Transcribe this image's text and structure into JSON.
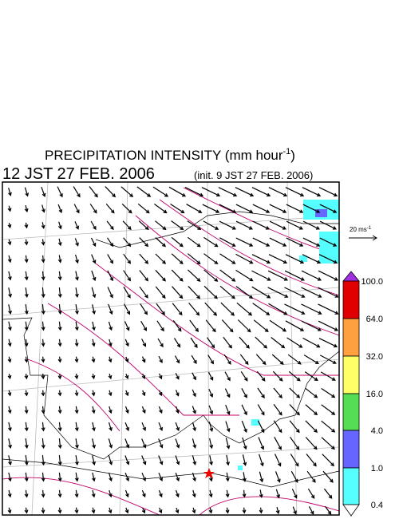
{
  "header": {
    "title": {
      "text": "PRECIPITATION INTENSITY (mm hour",
      "superscript": "-1",
      "suffix": ")"
    },
    "valid_time": "12 JST 27 FEB. 2006",
    "init_time": "(init. 9 JST 27 FEB. 2006)"
  },
  "vector_reference": {
    "text": "20 ms",
    "superscript": "-1"
  },
  "legend": {
    "levels": [
      "100.0",
      "64.0",
      "32.0",
      "16.0",
      "4.0",
      "1.0",
      "0.4"
    ]
  }
}
